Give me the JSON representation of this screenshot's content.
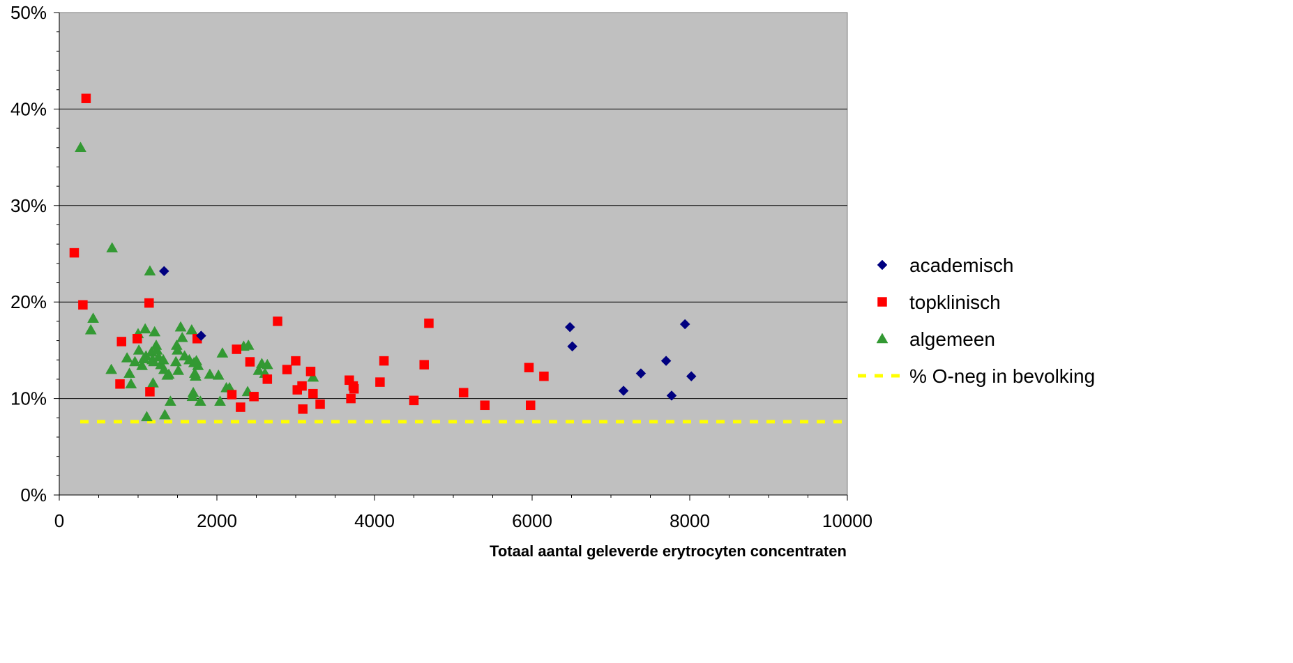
{
  "chart_data": {
    "type": "scatter",
    "title": "",
    "xlabel": "Totaal aantal geleverde erytrocyten concentraten",
    "ylabel": "",
    "xlim": [
      0,
      10000
    ],
    "ylim": [
      0,
      50
    ],
    "x_ticks": [
      "0",
      "2000",
      "4000",
      "6000",
      "8000",
      "10000"
    ],
    "y_ticks": [
      "0%",
      "10%",
      "20%",
      "30%",
      "40%",
      "50%"
    ],
    "plot_background": "#c0c0c0",
    "grid": "horizontal major lines",
    "legend_position": "right",
    "series": [
      {
        "name": "academisch",
        "marker": "diamond",
        "color": "#000080",
        "points": [
          [
            1330,
            23.2
          ],
          [
            1800,
            16.5
          ],
          [
            6480,
            17.4
          ],
          [
            6510,
            15.4
          ],
          [
            7160,
            10.8
          ],
          [
            7380,
            12.6
          ],
          [
            7700,
            13.9
          ],
          [
            7770,
            10.3
          ],
          [
            7940,
            17.7
          ],
          [
            8020,
            12.3
          ]
        ]
      },
      {
        "name": "topklinisch",
        "marker": "square",
        "color": "#ff0000",
        "points": [
          [
            190,
            25.1
          ],
          [
            300,
            19.7
          ],
          [
            340,
            41.1
          ],
          [
            770,
            11.5
          ],
          [
            790,
            15.9
          ],
          [
            990,
            16.2
          ],
          [
            1140,
            19.9
          ],
          [
            1150,
            10.7
          ],
          [
            1750,
            16.2
          ],
          [
            2190,
            10.4
          ],
          [
            2250,
            15.1
          ],
          [
            2300,
            9.1
          ],
          [
            2420,
            13.8
          ],
          [
            2470,
            10.2
          ],
          [
            2640,
            12.0
          ],
          [
            2770,
            18.0
          ],
          [
            2890,
            13.0
          ],
          [
            3000,
            13.9
          ],
          [
            3020,
            10.9
          ],
          [
            3080,
            11.3
          ],
          [
            3090,
            8.9
          ],
          [
            3190,
            12.8
          ],
          [
            3220,
            10.5
          ],
          [
            3310,
            9.4
          ],
          [
            3680,
            11.9
          ],
          [
            3700,
            10.0
          ],
          [
            3730,
            11.3
          ],
          [
            3740,
            11.0
          ],
          [
            4070,
            11.7
          ],
          [
            4120,
            13.9
          ],
          [
            4500,
            9.8
          ],
          [
            4630,
            13.5
          ],
          [
            4690,
            17.8
          ],
          [
            5130,
            10.6
          ],
          [
            5400,
            9.3
          ],
          [
            5960,
            13.2
          ],
          [
            5980,
            9.3
          ],
          [
            6150,
            12.3
          ]
        ]
      },
      {
        "name": "algemeen",
        "marker": "triangle",
        "color": "#339933",
        "points": [
          [
            270,
            36.0
          ],
          [
            400,
            17.1
          ],
          [
            430,
            18.3
          ],
          [
            660,
            13.0
          ],
          [
            670,
            25.6
          ],
          [
            860,
            14.2
          ],
          [
            890,
            12.6
          ],
          [
            910,
            11.5
          ],
          [
            960,
            13.8
          ],
          [
            1000,
            16.7
          ],
          [
            1010,
            15.0
          ],
          [
            1050,
            13.4
          ],
          [
            1070,
            14.1
          ],
          [
            1090,
            17.2
          ],
          [
            1100,
            14.4
          ],
          [
            1110,
            8.1
          ],
          [
            1150,
            23.2
          ],
          [
            1170,
            14.8
          ],
          [
            1180,
            14.0
          ],
          [
            1190,
            11.6
          ],
          [
            1200,
            13.8
          ],
          [
            1210,
            16.9
          ],
          [
            1230,
            15.5
          ],
          [
            1240,
            15.0
          ],
          [
            1260,
            14.3
          ],
          [
            1290,
            13.5
          ],
          [
            1320,
            14.0
          ],
          [
            1330,
            13.0
          ],
          [
            1340,
            8.3
          ],
          [
            1370,
            12.4
          ],
          [
            1390,
            12.5
          ],
          [
            1410,
            9.7
          ],
          [
            1480,
            13.8
          ],
          [
            1490,
            15.5
          ],
          [
            1500,
            15.0
          ],
          [
            1510,
            12.9
          ],
          [
            1540,
            17.4
          ],
          [
            1560,
            16.3
          ],
          [
            1590,
            14.4
          ],
          [
            1650,
            14.0
          ],
          [
            1680,
            17.1
          ],
          [
            1690,
            10.2
          ],
          [
            1700,
            10.6
          ],
          [
            1710,
            13.7
          ],
          [
            1720,
            12.6
          ],
          [
            1730,
            12.3
          ],
          [
            1740,
            13.9
          ],
          [
            1760,
            13.4
          ],
          [
            1790,
            9.7
          ],
          [
            1910,
            12.5
          ],
          [
            2020,
            12.4
          ],
          [
            2040,
            9.7
          ],
          [
            2070,
            14.7
          ],
          [
            2120,
            11.1
          ],
          [
            2160,
            11.1
          ],
          [
            2340,
            15.4
          ],
          [
            2390,
            10.7
          ],
          [
            2400,
            15.5
          ],
          [
            2530,
            12.9
          ],
          [
            2570,
            13.6
          ],
          [
            2610,
            12.6
          ],
          [
            2640,
            13.5
          ],
          [
            3220,
            12.2
          ]
        ]
      },
      {
        "name": "% O-neg in bevolking",
        "marker": "dashed-line",
        "color": "#ffff00",
        "y_constant": 7.6,
        "x_range": [
          0,
          10000
        ]
      }
    ]
  }
}
